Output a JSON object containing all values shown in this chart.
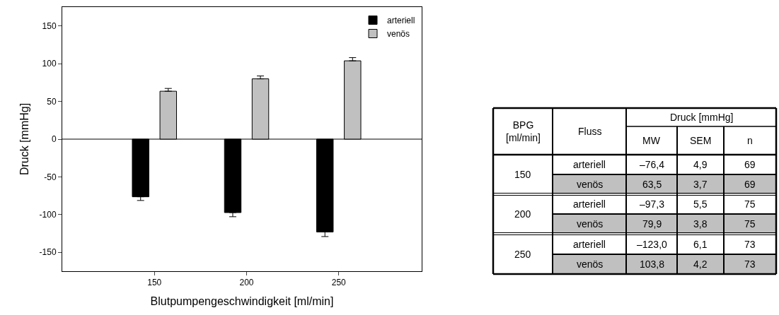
{
  "chart_data": [
    {
      "type": "bar",
      "xlabel": "Blutpumpengeschwindigkeit [ml/min]",
      "ylabel": "Druck [mmHg]",
      "x": [
        150,
        200,
        250
      ],
      "xlim": [
        100,
        295
      ],
      "xticks": [
        150,
        200,
        250
      ],
      "ylim": [
        -175,
        175
      ],
      "yticks": [
        -150,
        -100,
        -50,
        0,
        50,
        100,
        150
      ],
      "grid": false,
      "legend": "top right",
      "ref_lines": [
        {
          "axis": "y",
          "value": 0,
          "color": "#000000"
        }
      ],
      "series": [
        {
          "name": "arteriell",
          "color": "#000000",
          "values": [
            -76.4,
            -97.3,
            -123.0
          ],
          "errors": [
            [
              -81.3,
              -76.4
            ],
            [
              -102.8,
              -97.3
            ],
            [
              -129.1,
              -123.0
            ]
          ]
        },
        {
          "name": "venös",
          "color": "#c0c0c0",
          "values": [
            63.5,
            79.9,
            103.8
          ],
          "errors": [
            [
              63.5,
              67.2
            ],
            [
              79.9,
              83.7
            ],
            [
              103.8,
              108.0
            ]
          ]
        }
      ]
    },
    {
      "type": "other",
      "annotations": [
        "BPG [ml/min]",
        "Fluss",
        "Druck [mmHg]",
        "MW",
        "SEM",
        "n"
      ],
      "cells": [
        [
          "150",
          "arteriell",
          "–76,4",
          "4,9",
          "69"
        ],
        [
          null,
          "venös",
          "63,5",
          "3,7",
          "69"
        ],
        [
          "200",
          "arteriell",
          "–97,3",
          "5,5",
          "75"
        ],
        [
          null,
          "venös",
          "79,9",
          "3,8",
          "75"
        ],
        [
          "250",
          "arteriell",
          "–123,0",
          "6,1",
          "73"
        ],
        [
          null,
          "venös",
          "103,8",
          "4,2",
          "73"
        ]
      ],
      "colors": [
        null,
        "#c0c0c0",
        null,
        "#c0c0c0",
        null,
        "#c0c0c0"
      ]
    }
  ]
}
